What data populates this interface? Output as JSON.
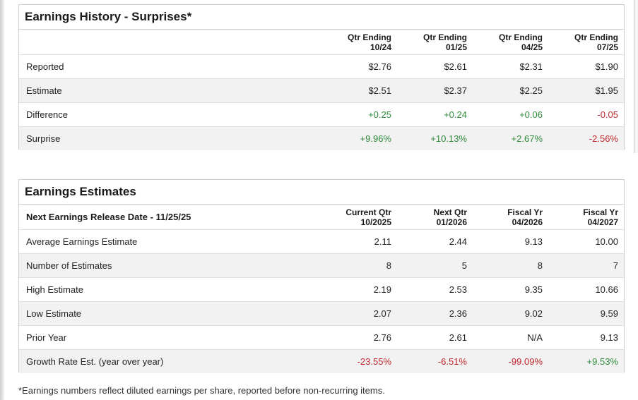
{
  "history": {
    "title": "Earnings History - Surprises*",
    "columns": [
      {
        "line1": "Qtr Ending",
        "line2": "10/24"
      },
      {
        "line1": "Qtr Ending",
        "line2": "01/25"
      },
      {
        "line1": "Qtr Ending",
        "line2": "04/25"
      },
      {
        "line1": "Qtr Ending",
        "line2": "07/25"
      }
    ],
    "rows": [
      {
        "label": "Reported",
        "values": [
          "$2.76",
          "$2.61",
          "$2.31",
          "$1.90"
        ]
      },
      {
        "label": "Estimate",
        "values": [
          "$2.51",
          "$2.37",
          "$2.25",
          "$1.95"
        ]
      },
      {
        "label": "Difference",
        "values": [
          "+0.25",
          "+0.24",
          "+0.06",
          "-0.05"
        ]
      },
      {
        "label": "Surprise",
        "values": [
          "+9.96%",
          "+10.13%",
          "+2.67%",
          "-2.56%"
        ]
      }
    ]
  },
  "estimates": {
    "title": "Earnings Estimates",
    "release_label": "Next Earnings Release Date - 11/25/25",
    "columns": [
      {
        "line1": "Current Qtr",
        "line2": "10/2025"
      },
      {
        "line1": "Next Qtr",
        "line2": "01/2026"
      },
      {
        "line1": "Fiscal Yr",
        "line2": "04/2026"
      },
      {
        "line1": "Fiscal Yr",
        "line2": "04/2027"
      }
    ],
    "rows": [
      {
        "label": "Average Earnings Estimate",
        "values": [
          "2.11",
          "2.44",
          "9.13",
          "10.00"
        ]
      },
      {
        "label": "Number of Estimates",
        "values": [
          "8",
          "5",
          "8",
          "7"
        ]
      },
      {
        "label": "High Estimate",
        "values": [
          "2.19",
          "2.53",
          "9.35",
          "10.66"
        ]
      },
      {
        "label": "Low Estimate",
        "values": [
          "2.07",
          "2.36",
          "9.02",
          "9.59"
        ]
      },
      {
        "label": "Prior Year",
        "values": [
          "2.76",
          "2.61",
          "N/A",
          "9.13"
        ]
      },
      {
        "label": "Growth Rate Est. (year over year)",
        "values": [
          "-23.55%",
          "-6.51%",
          "-99.09%",
          "+9.53%"
        ]
      }
    ]
  },
  "colors": {
    "positive": "#2e8b3a",
    "negative": "#c0272d"
  },
  "footnote": "*Earnings numbers reflect diluted earnings per share, reported before non-recurring items."
}
